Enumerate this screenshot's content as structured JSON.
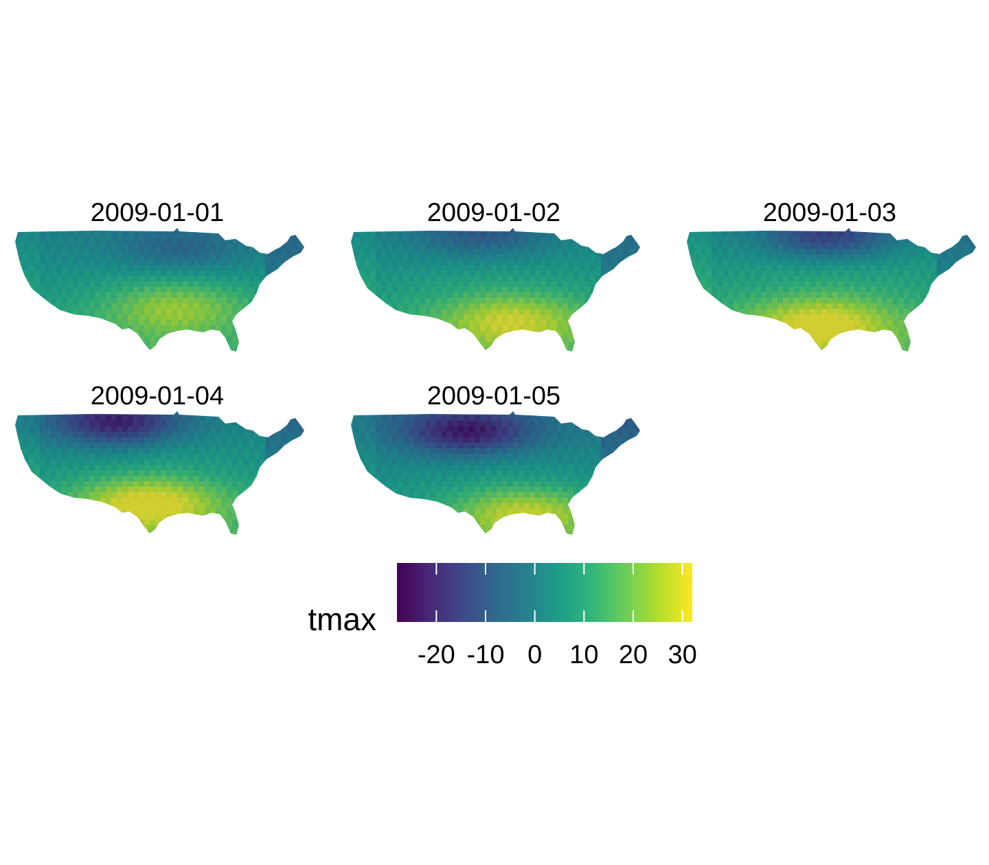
{
  "figure": {
    "variable": "tmax",
    "panels": [
      {
        "date": "2009-01-01",
        "warm_center": [
          0.55,
          0.62
        ],
        "cold_center": [
          0.55,
          0.15
        ],
        "warm_strength": 0.6,
        "cold_strength": 0.45,
        "base": 0.5
      },
      {
        "date": "2009-01-02",
        "warm_center": [
          0.55,
          0.72
        ],
        "cold_center": [
          0.45,
          0.05
        ],
        "warm_strength": 0.75,
        "cold_strength": 0.55,
        "base": 0.52
      },
      {
        "date": "2009-01-03",
        "warm_center": [
          0.45,
          0.75
        ],
        "cold_center": [
          0.48,
          0.05
        ],
        "warm_strength": 0.85,
        "cold_strength": 0.85,
        "base": 0.55
      },
      {
        "date": "2009-01-04",
        "warm_center": [
          0.45,
          0.72
        ],
        "cold_center": [
          0.35,
          0.08
        ],
        "warm_strength": 1.0,
        "cold_strength": 1.0,
        "base": 0.5
      },
      {
        "date": "2009-01-05",
        "warm_center": [
          0.6,
          0.8
        ],
        "cold_center": [
          0.4,
          0.15
        ],
        "warm_strength": 0.85,
        "cold_strength": 1.0,
        "base": 0.45
      }
    ]
  },
  "legend": {
    "title": "tmax",
    "min": -28,
    "max": 32,
    "ticks": [
      -20,
      -10,
      0,
      10,
      20,
      30
    ],
    "tick_labels": [
      "-20",
      "-10",
      "0",
      "10",
      "20",
      "30"
    ],
    "colors": [
      "#440154",
      "#482878",
      "#3e4989",
      "#31688e",
      "#26828e",
      "#1f9e89",
      "#35b779",
      "#6ece58",
      "#b5de2b",
      "#fde725"
    ]
  }
}
